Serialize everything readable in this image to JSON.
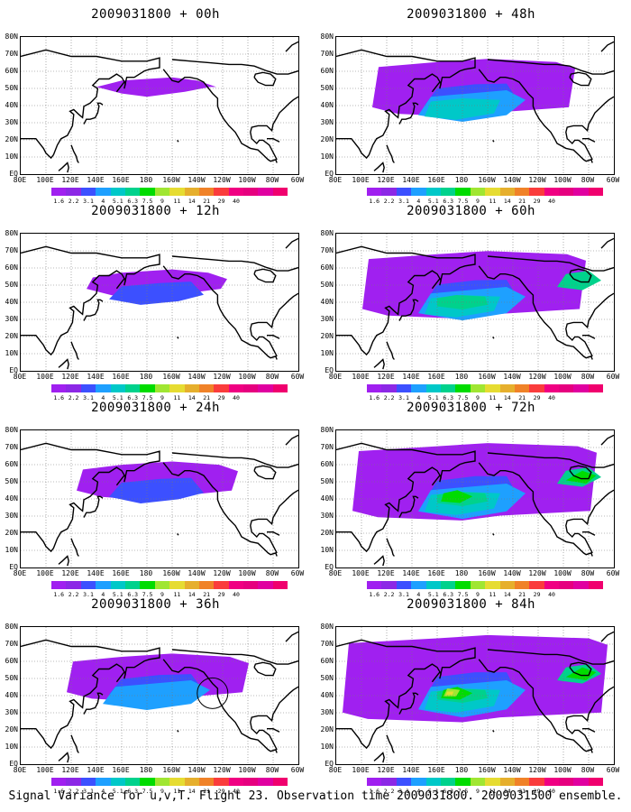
{
  "caption": "Signal Variance for u,v,T. Flight 23. Observation time 2009031800. 2009031500 ensemble.",
  "lat_labels": [
    "80N",
    "70N",
    "60N",
    "50N",
    "40N",
    "30N",
    "20N",
    "10N",
    "EQ"
  ],
  "lon_labels": [
    "80E",
    "100E",
    "120E",
    "140E",
    "160E",
    "180",
    "160W",
    "140W",
    "120W",
    "100W",
    "80W",
    "60W"
  ],
  "colorbar_levels": [
    "1.6",
    "2.2",
    "3.1",
    "4",
    "5.1",
    "6.3",
    "7.5",
    "9",
    "11",
    "14",
    "21",
    "29",
    "40"
  ],
  "colorbar_colors": [
    "#a020f0",
    "#8c28e6",
    "#3c50ff",
    "#1ea0ff",
    "#00c8c8",
    "#00d28c",
    "#00dc00",
    "#a0e632",
    "#e6dc32",
    "#e6af2d",
    "#f08228",
    "#fa3c3c",
    "#f00082"
  ],
  "panels": [
    {
      "title": "2009031800 + 00h",
      "intensity": 0
    },
    {
      "title": "2009031800 + 12h",
      "intensity": 1
    },
    {
      "title": "2009031800 + 24h",
      "intensity": 2
    },
    {
      "title": "2009031800 + 36h",
      "intensity": 3
    },
    {
      "title": "2009031800 + 48h",
      "intensity": 4
    },
    {
      "title": "2009031800 + 60h",
      "intensity": 5
    },
    {
      "title": "2009031800 + 72h",
      "intensity": 6
    },
    {
      "title": "2009031800 + 84h",
      "intensity": 7
    }
  ]
}
